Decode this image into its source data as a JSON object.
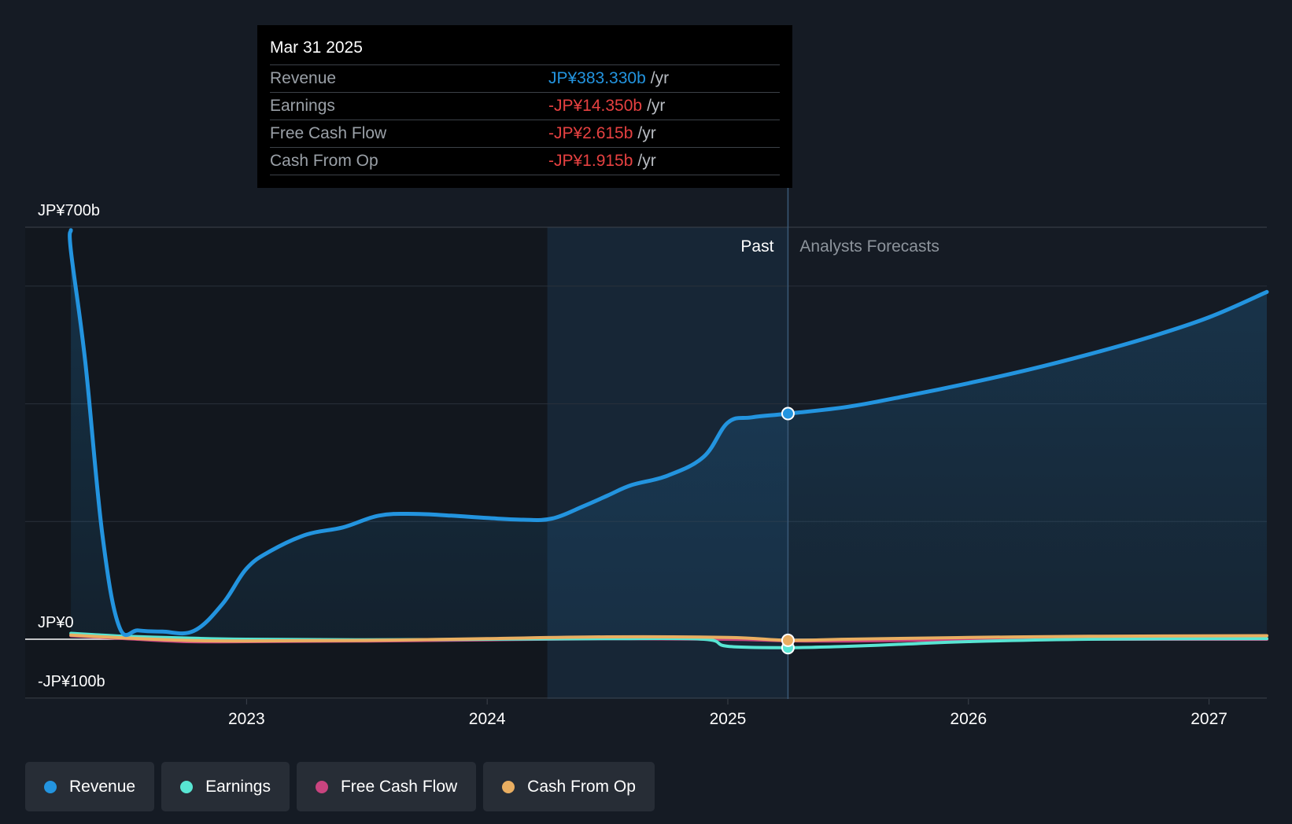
{
  "tooltip": {
    "date": "Mar 31 2025",
    "rows": [
      {
        "label": "Revenue",
        "value": "JP¥383.330b",
        "unit": "/yr",
        "color": "#2394df"
      },
      {
        "label": "Earnings",
        "value": "-JP¥14.350b",
        "unit": "/yr",
        "color": "#e64141"
      },
      {
        "label": "Free Cash Flow",
        "value": "-JP¥2.615b",
        "unit": "/yr",
        "color": "#e64141"
      },
      {
        "label": "Cash From Op",
        "value": "-JP¥1.915b",
        "unit": "/yr",
        "color": "#e64141"
      }
    ]
  },
  "sections": {
    "past": "Past",
    "forecast": "Analysts Forecasts"
  },
  "legend": [
    {
      "label": "Revenue",
      "color": "#2394df"
    },
    {
      "label": "Earnings",
      "color": "#58e5d3"
    },
    {
      "label": "Free Cash Flow",
      "color": "#c9447f"
    },
    {
      "label": "Cash From Op",
      "color": "#e9ae61"
    }
  ],
  "chart_data": {
    "type": "line",
    "y_tick_labels": [
      {
        "value": 700,
        "label": "JP¥700b"
      },
      {
        "value": 0,
        "label": "JP¥0"
      },
      {
        "value": -100,
        "label": "-JP¥100b"
      }
    ],
    "ylim": [
      -100,
      700
    ],
    "y_gridlines": [
      700,
      600,
      400,
      200,
      0,
      -100
    ],
    "x_ticks": [
      {
        "value": 2023,
        "label": "2023"
      },
      {
        "value": 2024,
        "label": "2024"
      },
      {
        "value": 2025,
        "label": "2025"
      },
      {
        "value": 2026,
        "label": "2026"
      },
      {
        "value": 2027,
        "label": "2027"
      }
    ],
    "xlim": [
      2022.08,
      2027.24
    ],
    "highlight_start": 2024.25,
    "past_forecast_divider": 2025.25,
    "series": [
      {
        "name": "Revenue",
        "color": "#2394df",
        "fill": true,
        "points": [
          [
            2022.27,
            695
          ],
          [
            2022.27,
            660
          ],
          [
            2022.33,
            470
          ],
          [
            2022.4,
            180
          ],
          [
            2022.47,
            22
          ],
          [
            2022.55,
            15
          ],
          [
            2022.65,
            13
          ],
          [
            2022.78,
            14
          ],
          [
            2022.9,
            60
          ],
          [
            2023.0,
            120
          ],
          [
            2023.1,
            150
          ],
          [
            2023.25,
            178
          ],
          [
            2023.4,
            190
          ],
          [
            2023.55,
            210
          ],
          [
            2023.7,
            213
          ],
          [
            2023.85,
            210
          ],
          [
            2024.0,
            206
          ],
          [
            2024.15,
            203
          ],
          [
            2024.27,
            205
          ],
          [
            2024.4,
            226
          ],
          [
            2024.5,
            244
          ],
          [
            2024.6,
            262
          ],
          [
            2024.75,
            278
          ],
          [
            2024.9,
            310
          ],
          [
            2025.0,
            368
          ],
          [
            2025.1,
            377
          ],
          [
            2025.25,
            383.33
          ],
          [
            2025.5,
            395
          ],
          [
            2025.75,
            414
          ],
          [
            2026.0,
            435
          ],
          [
            2026.25,
            458
          ],
          [
            2026.5,
            484
          ],
          [
            2026.75,
            513
          ],
          [
            2027.0,
            547
          ],
          [
            2027.24,
            590
          ]
        ]
      },
      {
        "name": "Earnings",
        "color": "#58e5d3",
        "fill": false,
        "points": [
          [
            2022.27,
            10
          ],
          [
            2022.5,
            5
          ],
          [
            2022.75,
            2
          ],
          [
            2023.0,
            0
          ],
          [
            2023.5,
            -1
          ],
          [
            2024.0,
            0
          ],
          [
            2024.5,
            1
          ],
          [
            2024.9,
            0
          ],
          [
            2025.0,
            -12
          ],
          [
            2025.25,
            -14.35
          ],
          [
            2025.5,
            -12
          ],
          [
            2025.75,
            -8
          ],
          [
            2026.0,
            -4
          ],
          [
            2026.5,
            0
          ],
          [
            2027.24,
            1
          ]
        ]
      },
      {
        "name": "Free Cash Flow",
        "color": "#c9447f",
        "fill": false,
        "points": [
          [
            2022.27,
            6
          ],
          [
            2022.5,
            1
          ],
          [
            2022.75,
            -4
          ],
          [
            2023.0,
            -4
          ],
          [
            2023.5,
            -3
          ],
          [
            2024.0,
            -1
          ],
          [
            2024.5,
            1
          ],
          [
            2025.0,
            0
          ],
          [
            2025.25,
            -2.6
          ],
          [
            2025.5,
            -3
          ],
          [
            2026.0,
            -1
          ],
          [
            2026.5,
            0
          ],
          [
            2027.24,
            0
          ]
        ]
      },
      {
        "name": "Cash From Op",
        "color": "#e9ae61",
        "fill": false,
        "points": [
          [
            2022.27,
            7
          ],
          [
            2022.5,
            2
          ],
          [
            2022.75,
            -2
          ],
          [
            2023.0,
            -3
          ],
          [
            2023.5,
            -2
          ],
          [
            2024.0,
            1
          ],
          [
            2024.5,
            4
          ],
          [
            2025.0,
            3
          ],
          [
            2025.25,
            -1.9
          ],
          [
            2025.5,
            0
          ],
          [
            2026.0,
            3
          ],
          [
            2026.5,
            5
          ],
          [
            2027.24,
            6
          ]
        ]
      }
    ],
    "markers": [
      {
        "series": "Revenue",
        "x": 2025.25,
        "y": 383.33
      },
      {
        "series": "Earnings",
        "x": 2025.25,
        "y": -14.35
      },
      {
        "series": "Cash From Op",
        "x": 2025.25,
        "y": -1.9
      }
    ]
  }
}
